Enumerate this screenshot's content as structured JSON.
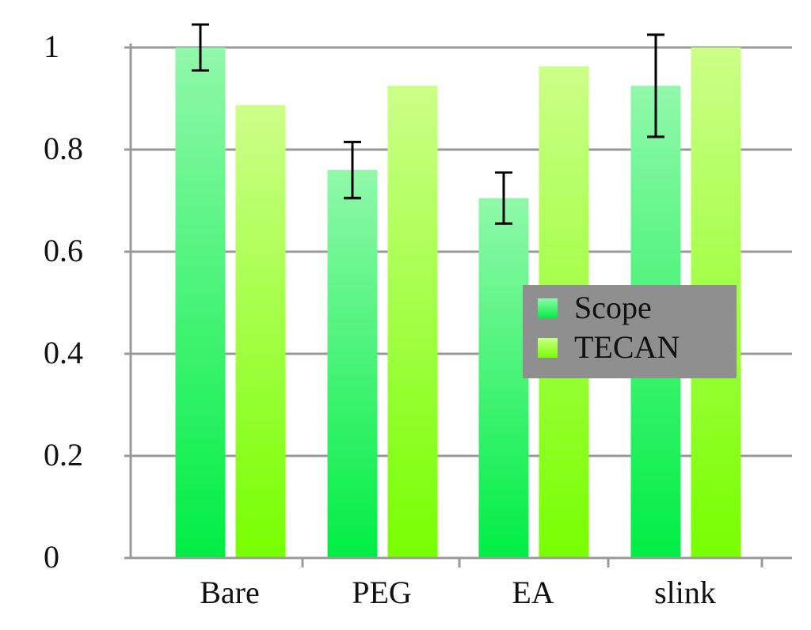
{
  "chart_data": {
    "type": "bar",
    "title": "",
    "xlabel": "",
    "ylabel": "",
    "ylim": [
      0,
      1
    ],
    "yticks": [
      "0",
      "0.2",
      "0.4",
      "0.6",
      "0.8",
      "1"
    ],
    "ytick_values": [
      0,
      0.2,
      0.4,
      0.6,
      0.8,
      1
    ],
    "grid": true,
    "categories": [
      "Bare",
      "PEG",
      "EA",
      "slink"
    ],
    "series": [
      {
        "name": "Scope",
        "values": [
          1.0,
          0.76,
          0.705,
          0.925
        ],
        "errors": [
          0.045,
          0.055,
          0.05,
          0.1
        ],
        "color_top": "#90f8aa",
        "color_bottom": "#00ee44"
      },
      {
        "name": "TECAN",
        "values": [
          0.887,
          0.925,
          0.963,
          1.0
        ],
        "color_top": "#ccff88",
        "color_bottom": "#77ff00"
      }
    ],
    "legend": {
      "placement": "center-right",
      "background": "#8f8f8f"
    }
  }
}
